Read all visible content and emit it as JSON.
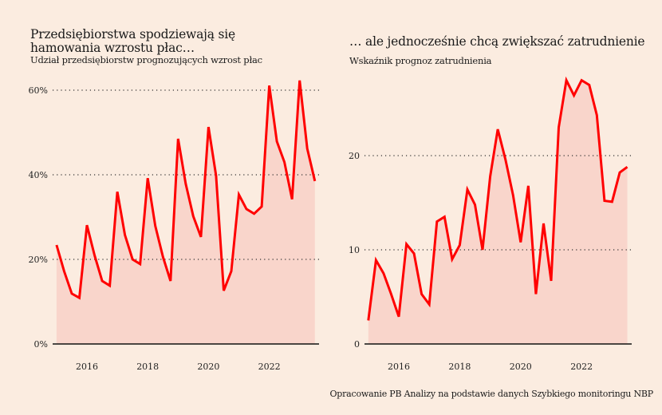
{
  "left": {
    "title": "Przedsiębiorstwa spodziewają się hamowania wzrostu płac…",
    "subtitle": "Udział przedsiębiorstw prognozujących wzrost płac"
  },
  "right": {
    "title": "… ale jednocześnie chcą zwiększać zatrudnienie",
    "subtitle": "Wskaźnik prognoz zatrudnienia"
  },
  "source": "Opracowanie PB Analizy na podstawie danych Szybkiego monitoringu NBP",
  "colors": {
    "line": "#ff0000",
    "fill": "#f9d5cb",
    "background": "#fbece0",
    "grid": "#333333"
  },
  "chart_data": [
    {
      "type": "area",
      "title": "Przedsiębiorstwa spodziewają się hamowania wzrostu płac…",
      "subtitle": "Udział przedsiębiorstw prognozujących wzrost płac",
      "xlabel": "",
      "ylabel": "",
      "x_start": 2015.0,
      "x_step": 0.25,
      "xticks": [
        2016,
        2018,
        2020,
        2022
      ],
      "xtick_labels": [
        "2016",
        "2018",
        "2020",
        "2022"
      ],
      "yticks": [
        0,
        20,
        40,
        60
      ],
      "ytick_labels": [
        "0%",
        "20%",
        "40%",
        "60%"
      ],
      "ylim": [
        0,
        60
      ],
      "xlim": [
        2014.0,
        2023.75
      ],
      "grid": "horizontal-dotted",
      "values": [
        23.4,
        17.2,
        11.9,
        10.9,
        28.1,
        21.0,
        14.9,
        13.8,
        36.0,
        25.8,
        20.0,
        18.9,
        39.2,
        27.9,
        20.6,
        14.9,
        48.5,
        37.9,
        30.2,
        25.3,
        51.3,
        39.8,
        12.6,
        17.2,
        35.3,
        31.9,
        30.8,
        32.5,
        61.1,
        47.9,
        43.0,
        34.2,
        62.3,
        46.2,
        38.5
      ]
    },
    {
      "type": "area",
      "title": "… ale jednocześnie chcą zwiększać zatrudnienie",
      "subtitle": "Wskaźnik prognoz zatrudnienia",
      "xlabel": "",
      "ylabel": "",
      "x_start": 2015.0,
      "x_step": 0.25,
      "xticks": [
        2016,
        2018,
        2020,
        2022
      ],
      "xtick_labels": [
        "2016",
        "2018",
        "2020",
        "2022"
      ],
      "yticks": [
        0,
        10,
        20
      ],
      "ytick_labels": [
        "0",
        "10",
        "20"
      ],
      "ylim": [
        0,
        20
      ],
      "xlim": [
        2014.0,
        2023.75
      ],
      "grid": "horizontal-dotted",
      "values": [
        2.5,
        8.9,
        7.5,
        5.3,
        2.9,
        10.6,
        9.6,
        5.3,
        4.2,
        13.0,
        13.5,
        9.0,
        10.5,
        16.4,
        14.8,
        10.0,
        17.8,
        22.8,
        19.6,
        15.8,
        10.8,
        16.8,
        5.3,
        12.8,
        6.7,
        23.0,
        28.0,
        26.4,
        28.0,
        27.5,
        24.3,
        15.2,
        15.1,
        18.2,
        18.8
      ]
    }
  ]
}
